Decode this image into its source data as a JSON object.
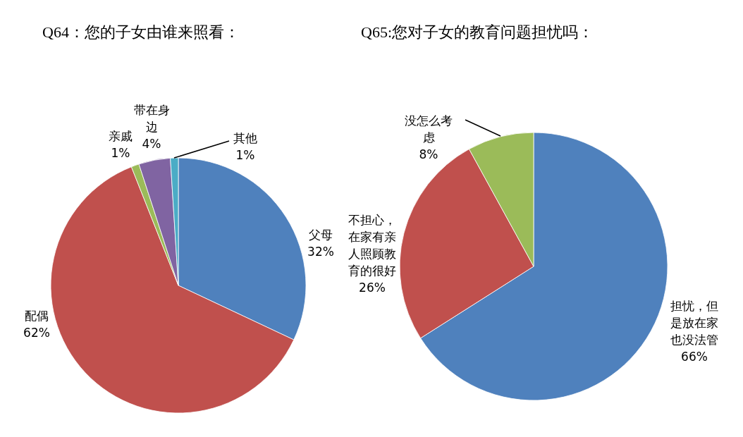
{
  "chart_data": [
    {
      "type": "pie",
      "title": "Q64：您的子女由谁来照看：",
      "categories": [
        "父母",
        "配偶",
        "亲戚",
        "带在身边",
        "其他"
      ],
      "values": [
        32,
        62,
        1,
        4,
        1
      ],
      "value_labels": [
        "32%",
        "62%",
        "1%",
        "4%",
        "1%"
      ],
      "colors": [
        "#4f81bd",
        "#c0504d",
        "#9bbb59",
        "#8064a2",
        "#4bacc6"
      ],
      "legend": false
    },
    {
      "type": "pie",
      "title": "Q65:您对子女的教育问题担忧吗：",
      "categories": [
        "担忧，但是放在家也没法管",
        "不担心，在家有亲人照顾教育的很好",
        "没怎么考虑"
      ],
      "values": [
        66,
        26,
        8
      ],
      "value_labels": [
        "66%",
        "26%",
        "8%"
      ],
      "colors": [
        "#4f81bd",
        "#c0504d",
        "#9bbb59"
      ],
      "legend": false
    }
  ]
}
